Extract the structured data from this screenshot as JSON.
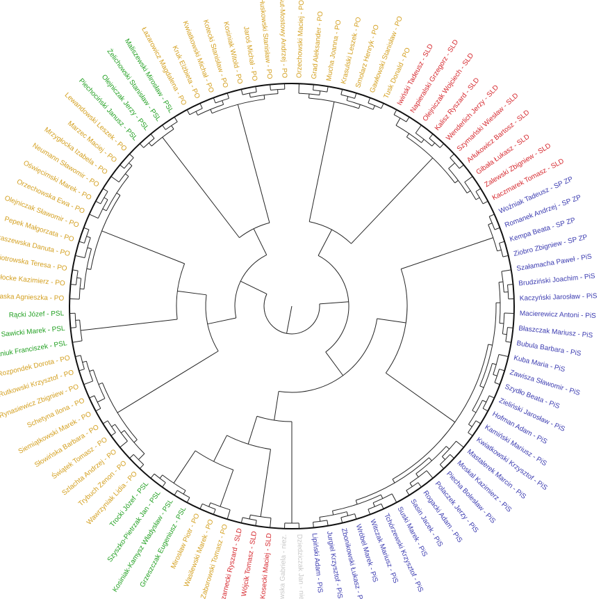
{
  "clusters": [
    {
      "color": "#d4a020",
      "leaves": [
        "Orzechowski Maciej - PO",
        "Grad Aleksander - PO",
        "Mucha Joanna - PO",
        "Krasulski Leszek - PO",
        "Smolarz Henryk - PO",
        "Gawłowski Stanisław - PO",
        "Tusk Donald - PO"
      ]
    },
    {
      "color": "#d6282e",
      "leaves": [
        "Iwiński Tadeusz - SLD",
        "Napieralski Grzegorz - SLD",
        "Olejniczak Wojciech - SLD",
        "Kalisz Ryszard - SLD",
        "Wenderlich Jerzy - SLD",
        "Szymański Wiesław - SLD",
        "Arłukowicz Bartosz - SLD",
        "Gibała Łukasz - SLD",
        "Zalewski Zbigniew - SLD",
        "Kaczmarek Tomasz - SLD"
      ]
    },
    {
      "color": "#3b3bb0",
      "leaves": [
        "Woźniak Tadeusz - SP ZP",
        "Romanek Andrzej - SP ZP",
        "Kempa Beata - SP ZP",
        "Ziobro Zbigniew - SP ZP"
      ]
    },
    {
      "color": "#3b3bb0",
      "leaves": [
        "Szałamacha Paweł - PiS",
        "Brudziński Joachim - PiS",
        "Kaczyński Jarosław - PiS",
        "Macierewicz Antoni - PiS",
        "Błaszczak Mariusz - PiS",
        "Bubula Barbara - PiS",
        "Kuba Maria - PiS",
        "Zawisza Sławomir - PiS",
        "Szydło Beata - PiS",
        "Zieliński Jarosław - PiS",
        "Hofman Adam - PiS",
        "Kamiński Mariusz - PiS",
        "Kwiatkowski Krzysztof - PiS",
        "Mastalerek Marcin - PiS",
        "Moskal Kazimierz - PiS",
        "Piecha Bolesław - PiS",
        "Polaczek Jerzy - PiS",
        "Rogacki Adam - PiS",
        "Sasin Jacek - PiS",
        "Suski Marek - PiS",
        "Tchórzewski Krzysztof - PiS",
        "Witczak Mariusz - PiS",
        "Wróbel Marek - PiS",
        "Zbonikowski Łukasz - PiS",
        "Jurgiel Krzysztof - PiS",
        "Lipiński Adam - PiS"
      ]
    },
    {
      "color": "#c8c8c8",
      "leaves": [
        "Dziedziczak Jan - niez.",
        "Masłowska Gabriela - niez."
      ]
    },
    {
      "color": "#d6282e",
      "leaves": [
        "Kosecki Maciej - SLD",
        "Wójcik Tomasz - SLD",
        "Czarnecki Ryszard - SLD"
      ]
    },
    {
      "color": "#d4a020",
      "leaves": [
        "Zaborowski Tomasz - PO",
        "Wasilewski Marek - PO",
        "Mirosław Piotr - PO"
      ]
    },
    {
      "color": "#22a022",
      "leaves": [
        "Grzeszczak Eugeniusz - PSL",
        "Kosiniak-Kamysz Władysław - PSL",
        "Szyszko-Pietrzak Jan - PSL",
        "Trocki Józef - PSL"
      ]
    },
    {
      "color": "#d4a020",
      "leaves": [
        "Wawrzyniak Lidia - PO",
        "Trybuch Zenon - PO",
        "Szlachta Andrzej - PO",
        "Świątek Tomasz - PO",
        "Słowińska Barbara - PO",
        "Siemiątkowski Marek - PO",
        "Schetyna Ilona - PO",
        "Rynasiewicz Zbigniew - PO",
        "Rutkowski Krzysztof - PO",
        "Rozpondek Dorota - PO"
      ]
    },
    {
      "color": "#22a022",
      "leaves": [
        "Stefaniuk Franciszek - PSL",
        "Sawicki Marek - PSL",
        "Rącki Józef - PSL"
      ]
    },
    {
      "color": "#d4a020",
      "leaves": [
        "Pomaska Agnieszka - PO",
        "Płocke Kazimierz - PO",
        "Piotrowska Teresa - PO",
        "Pietraszewska Danuta - PO",
        "Pepek Małgorzata - PO",
        "Olejniczak Sławomir - PO",
        "Orzechowska Ewa - PO",
        "Oświęcimski Marek - PO",
        "Neumann Sławomir - PO",
        "Mrzygłocka Izabela - PO",
        "Marzec Maciej - PO",
        "Lewandowski Leszek - PO"
      ]
    },
    {
      "color": "#22a022",
      "leaves": [
        "Piechociński Janusz - PSL",
        "Olejniczak Jerzy - PSL",
        "Żelichowski Stanisław - PSL",
        "Maliszewski Mirosław - PSL"
      ]
    },
    {
      "color": "#d4a020",
      "leaves": [
        "Łazarowicz Magdalena - PO",
        "Kruk Elżbieta - PO",
        "Kwiatkowski Michał - PO",
        "Kotecki Stanisław - PO",
        "Kosiniak Witold - PO",
        "Jaroś Michał - PO",
        "Huskowski Stanisław - PO",
        "Gut-Mostowy Andrzej - PO"
      ]
    }
  ]
}
